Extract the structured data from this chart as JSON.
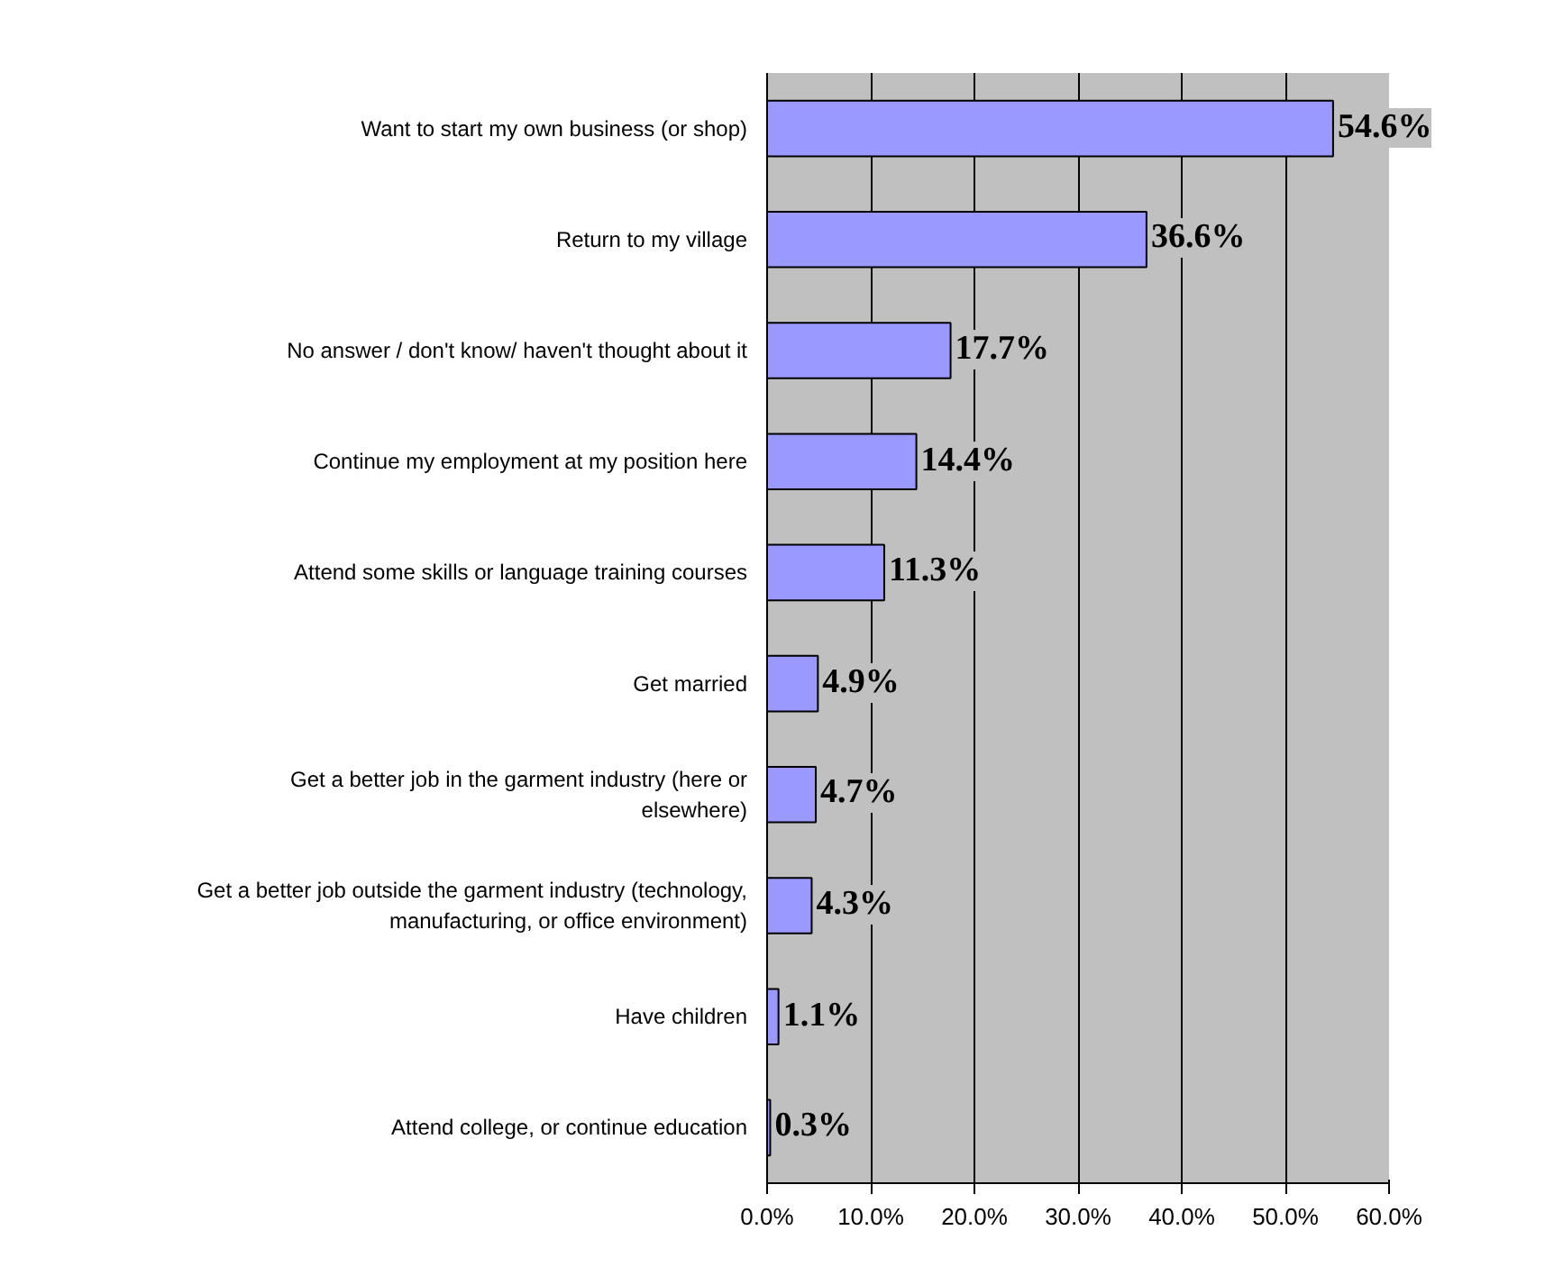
{
  "chart_data": {
    "type": "bar",
    "orientation": "horizontal",
    "categories": [
      "Want to start my own business (or shop)",
      "Return to my village",
      "No answer / don't know/ haven't thought about it",
      "Continue my employment at my position here",
      "Attend some skills or language training courses",
      "Get married",
      "Get a better job in the garment industry (here or\nelsewhere)",
      "Get a better job outside the garment industry (technology,\nmanufacturing, or office environment)",
      "Have children",
      "Attend college, or continue education"
    ],
    "values": [
      54.6,
      36.6,
      17.7,
      14.4,
      11.3,
      4.9,
      4.7,
      4.3,
      1.1,
      0.3
    ],
    "value_labels": [
      "54.6%",
      "36.6%",
      "17.7%",
      "14.4%",
      "11.3%",
      "4.9%",
      "4.7%",
      "4.3%",
      "1.1%",
      "0.3%"
    ],
    "color": "#9999ff",
    "xlim": [
      0,
      60
    ],
    "xticks": [
      {
        "value": 0,
        "label": "0.0%"
      },
      {
        "value": 10,
        "label": "10.0%"
      },
      {
        "value": 20,
        "label": "20.0%"
      },
      {
        "value": 30,
        "label": "30.0%"
      },
      {
        "value": 40,
        "label": "40.0%"
      },
      {
        "value": 50,
        "label": "50.0%"
      },
      {
        "value": 60,
        "label": "60.0%"
      }
    ],
    "grid": "x",
    "legend": false
  }
}
